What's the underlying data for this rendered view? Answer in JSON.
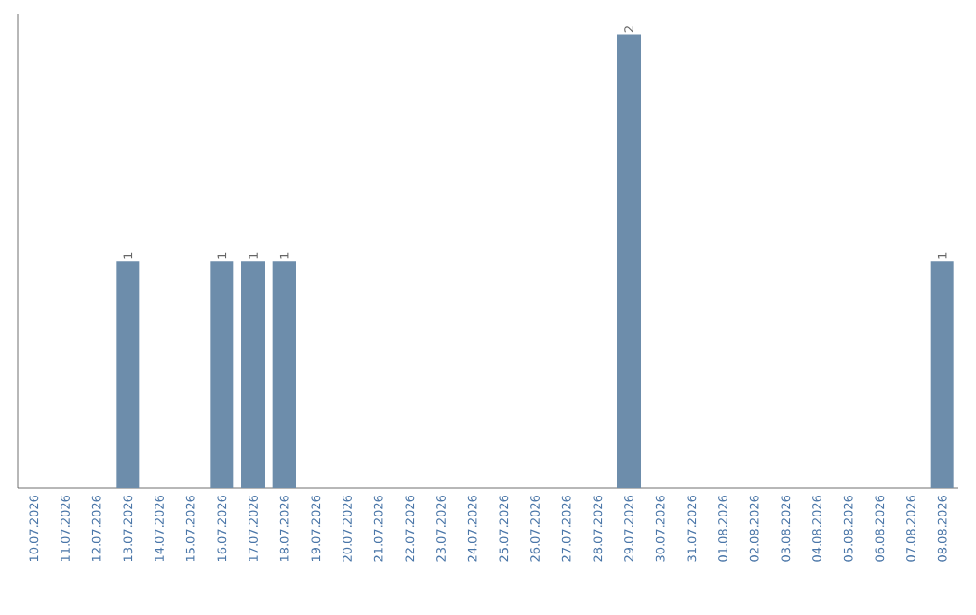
{
  "chart_data": {
    "type": "bar",
    "categories": [
      "10.07.2026",
      "11.07.2026",
      "12.07.2026",
      "13.07.2026",
      "14.07.2026",
      "15.07.2026",
      "16.07.2026",
      "17.07.2026",
      "18.07.2026",
      "19.07.2026",
      "20.07.2026",
      "21.07.2026",
      "22.07.2026",
      "23.07.2026",
      "24.07.2026",
      "25.07.2026",
      "26.07.2026",
      "27.07.2026",
      "28.07.2026",
      "29.07.2026",
      "30.07.2026",
      "31.07.2026",
      "01.08.2026",
      "02.08.2026",
      "03.08.2026",
      "04.08.2026",
      "05.08.2026",
      "06.08.2026",
      "07.08.2026",
      "08.08.2026"
    ],
    "values": [
      0,
      0,
      0,
      1,
      0,
      0,
      1,
      1,
      1,
      0,
      0,
      0,
      0,
      0,
      0,
      0,
      0,
      0,
      0,
      2,
      0,
      0,
      0,
      0,
      0,
      0,
      0,
      0,
      0,
      1
    ],
    "value_labels": [
      null,
      null,
      null,
      "1",
      null,
      null,
      "1",
      "1",
      "1",
      null,
      null,
      null,
      null,
      null,
      null,
      null,
      null,
      null,
      null,
      "2",
      null,
      null,
      null,
      null,
      null,
      null,
      null,
      null,
      null,
      "1"
    ],
    "color": "#6d8dab"
  }
}
